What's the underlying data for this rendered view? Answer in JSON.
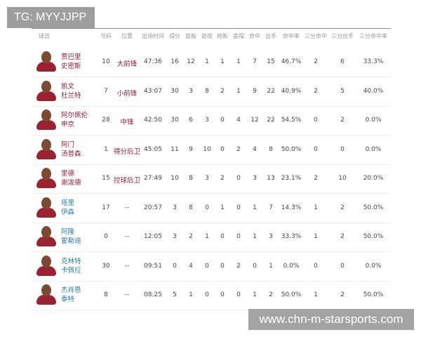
{
  "watermark_top": "TG: MYYJJPP",
  "watermark_bottom": "www.chn-m-starsports.com",
  "headers": [
    "球员",
    "号码",
    "位置",
    "出场时间",
    "得分",
    "篮板",
    "助攻",
    "抢断",
    "盖帽",
    "命中",
    "出手",
    "命中率",
    "三分命中",
    "三分出手",
    "三分命中率"
  ],
  "rows": [
    {
      "name1": "贾巴里",
      "name2": "史密斯",
      "num": "10",
      "pos": "大前锋",
      "time": "47:36",
      "pts": "16",
      "reb": "12",
      "ast": "1",
      "stl": "1",
      "blk": "1",
      "fgm": "7",
      "fga": "15",
      "fgp": "46.7%",
      "tpm": "2",
      "tpa": "6",
      "tpp": "33.3%",
      "starter": true
    },
    {
      "name1": "凯文",
      "name2": "杜兰特",
      "num": "7",
      "pos": "小前锋",
      "time": "43:07",
      "pts": "30",
      "reb": "3",
      "ast": "8",
      "stl": "2",
      "blk": "1",
      "fgm": "9",
      "fga": "22",
      "fgp": "40.9%",
      "tpm": "2",
      "tpa": "5",
      "tpp": "40.0%",
      "starter": true
    },
    {
      "name1": "阿尔佩伦",
      "name2": "申京",
      "num": "28",
      "pos": "中锋",
      "time": "42:50",
      "pts": "30",
      "reb": "6",
      "ast": "3",
      "stl": "0",
      "blk": "4",
      "fgm": "12",
      "fga": "22",
      "fgp": "54.5%",
      "tpm": "0",
      "tpa": "2",
      "tpp": "0.0%",
      "starter": true
    },
    {
      "name1": "阿门",
      "name2": "汤普森",
      "num": "1",
      "pos": "得分后卫",
      "time": "45:05",
      "pts": "11",
      "reb": "9",
      "ast": "10",
      "stl": "0",
      "blk": "2",
      "fgm": "4",
      "fga": "8",
      "fgp": "50.0%",
      "tpm": "0",
      "tpa": "0",
      "tpp": "0.0%",
      "starter": true
    },
    {
      "name1": "里德",
      "name2": "谢泼德",
      "num": "15",
      "pos": "控球后卫",
      "time": "27:49",
      "pts": "10",
      "reb": "8",
      "ast": "3",
      "stl": "2",
      "blk": "0",
      "fgm": "3",
      "fga": "13",
      "fgp": "23.1%",
      "tpm": "2",
      "tpa": "10",
      "tpp": "20.0%",
      "starter": true
    },
    {
      "name1": "塔里",
      "name2": "伊森",
      "num": "17",
      "pos": "--",
      "time": "20:57",
      "pts": "3",
      "reb": "8",
      "ast": "0",
      "stl": "1",
      "blk": "0",
      "fgm": "1",
      "fga": "7",
      "fgp": "14.3%",
      "tpm": "1",
      "tpa": "2",
      "tpp": "50.0%",
      "starter": false
    },
    {
      "name1": "阿隆",
      "name2": "霍勒迪",
      "num": "0",
      "pos": "--",
      "time": "12:05",
      "pts": "3",
      "reb": "2",
      "ast": "1",
      "stl": "0",
      "blk": "0",
      "fgm": "1",
      "fga": "3",
      "fgp": "33.3%",
      "tpm": "1",
      "tpa": "2",
      "tpp": "50.0%",
      "starter": false
    },
    {
      "name1": "克林特",
      "name2": "卡佩拉",
      "num": "30",
      "pos": "--",
      "time": "09:51",
      "pts": "0",
      "reb": "4",
      "ast": "0",
      "stl": "0",
      "blk": "2",
      "fgm": "0",
      "fga": "1",
      "fgp": "0.0%",
      "tpm": "0",
      "tpa": "0",
      "tpp": "0.0%",
      "starter": false
    },
    {
      "name1": "杰肖恩",
      "name2": "泰特",
      "num": "8",
      "pos": "--",
      "time": "08:25",
      "pts": "5",
      "reb": "1",
      "ast": "0",
      "stl": "0",
      "blk": "0",
      "fgm": "1",
      "fga": "2",
      "fgp": "50.0%",
      "tpm": "1",
      "tpa": "2",
      "tpp": "50.0%",
      "starter": false
    }
  ],
  "colors": {
    "starter_name": "#8e2040",
    "bench_name": "#2f7c9a",
    "jersey": "#9b2230"
  }
}
